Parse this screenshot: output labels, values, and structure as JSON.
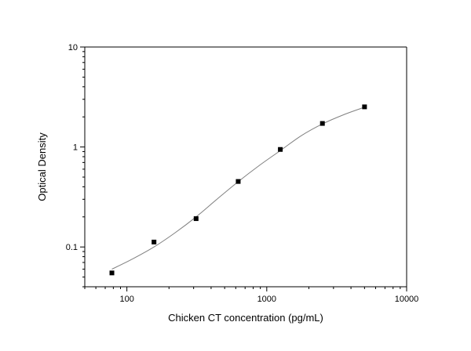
{
  "chart_data": {
    "type": "scatter",
    "title": "",
    "xlabel": "Chicken CT concentration (pg/mL)",
    "ylabel": "Optical Density",
    "x_scale": "log",
    "y_scale": "log",
    "xlim": [
      50,
      10000
    ],
    "ylim": [
      0.04,
      10
    ],
    "x_ticks": [
      {
        "value": 100,
        "label": "100"
      },
      {
        "value": 1000,
        "label": "1000"
      },
      {
        "value": 10000,
        "label": "10000"
      }
    ],
    "y_ticks": [
      {
        "value": 0.1,
        "label": "0.1"
      },
      {
        "value": 1,
        "label": "1"
      },
      {
        "value": 10,
        "label": "10"
      }
    ],
    "grid": false,
    "legend": "none",
    "marker_color": "#000000",
    "curve_color": "#808080",
    "series": [
      {
        "points": [
          {
            "x": 78.125,
            "y": 0.055
          },
          {
            "x": 156.25,
            "y": 0.112
          },
          {
            "x": 312.5,
            "y": 0.192
          },
          {
            "x": 625,
            "y": 0.452
          },
          {
            "x": 1250,
            "y": 0.945
          },
          {
            "x": 2500,
            "y": 1.72
          },
          {
            "x": 5000,
            "y": 2.52
          }
        ]
      }
    ],
    "fit_curve": [
      {
        "x": 78.125,
        "y": 0.06
      },
      {
        "x": 110,
        "y": 0.076
      },
      {
        "x": 156.25,
        "y": 0.1
      },
      {
        "x": 220,
        "y": 0.138
      },
      {
        "x": 312.5,
        "y": 0.2
      },
      {
        "x": 440,
        "y": 0.3
      },
      {
        "x": 625,
        "y": 0.45
      },
      {
        "x": 880,
        "y": 0.65
      },
      {
        "x": 1250,
        "y": 0.92
      },
      {
        "x": 1770,
        "y": 1.3
      },
      {
        "x": 2500,
        "y": 1.7
      },
      {
        "x": 3540,
        "y": 2.1
      },
      {
        "x": 5000,
        "y": 2.5
      }
    ]
  }
}
